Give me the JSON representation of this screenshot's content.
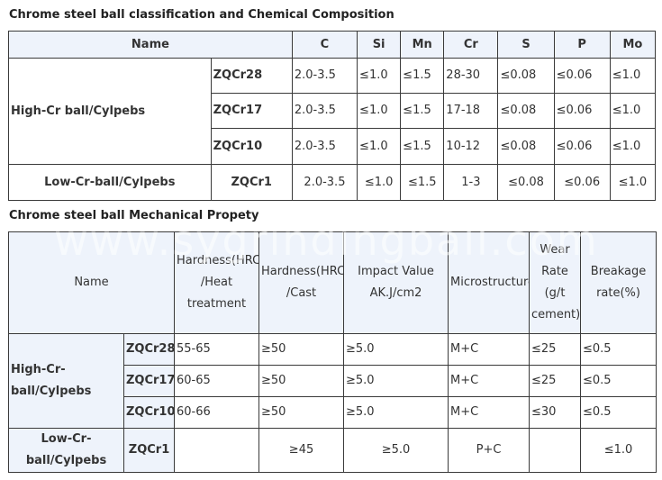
{
  "table1": {
    "title": "Chrome steel ball classification and Chemical Composition",
    "headers": [
      "Name",
      "C",
      "Si",
      "Mn",
      "Cr",
      "S",
      "P",
      "Mo"
    ],
    "group_high": "High-Cr ball/Cylpebs",
    "group_low": "Low-Cr-ball/Cylpebs",
    "rows": [
      [
        "ZQCr28",
        "2.0-3.5",
        "≤1.0",
        "≤1.5",
        "28-30",
        "≤0.08",
        "≤0.06",
        "≤1.0"
      ],
      [
        "ZQCr17",
        "2.0-3.5",
        "≤1.0",
        "≤1.5",
        "17-18",
        "≤0.08",
        "≤0.06",
        "≤1.0"
      ],
      [
        "ZQCr10",
        "2.0-3.5",
        "≤1.0",
        "≤1.5",
        "10-12",
        "≤0.08",
        "≤0.06",
        "≤1.0"
      ],
      [
        "ZQCr1",
        "2.0-3.5",
        "≤1.0",
        "≤1.5",
        "1-3",
        "≤0.08",
        "≤0.06",
        "≤1.0"
      ]
    ]
  },
  "table2": {
    "title": "Chrome steel ball Mechanical Propety",
    "headers": [
      "Name",
      "Hardness(HRC) /Heat treatment",
      "Hardness(HRC) /Cast",
      "Impact Value AK.J/cm2",
      "Microstructure",
      "Wear Rate (g/t cement)",
      "Breakage rate(%)"
    ],
    "group_high": "High-Cr-ball/Cylpebs",
    "group_low": "Low-Cr-ball/Cylpebs",
    "rows": [
      [
        "ZQCr28",
        "55-65",
        "≥50",
        "≥5.0",
        "M+C",
        "≤25",
        "≤0.5"
      ],
      [
        "ZQCr17",
        "60-65",
        "≥50",
        "≥5.0",
        "M+C",
        "≤25",
        "≤0.5"
      ],
      [
        "ZQCr10",
        "60-66",
        "≥50",
        "≥5.0",
        "M+C",
        "≤30",
        "≤0.5"
      ],
      [
        "ZQCr1",
        "",
        "≥45",
        "≥5.0",
        "P+C",
        "",
        "≤1.0"
      ]
    ]
  },
  "watermark": "www.sygrindingball.com"
}
